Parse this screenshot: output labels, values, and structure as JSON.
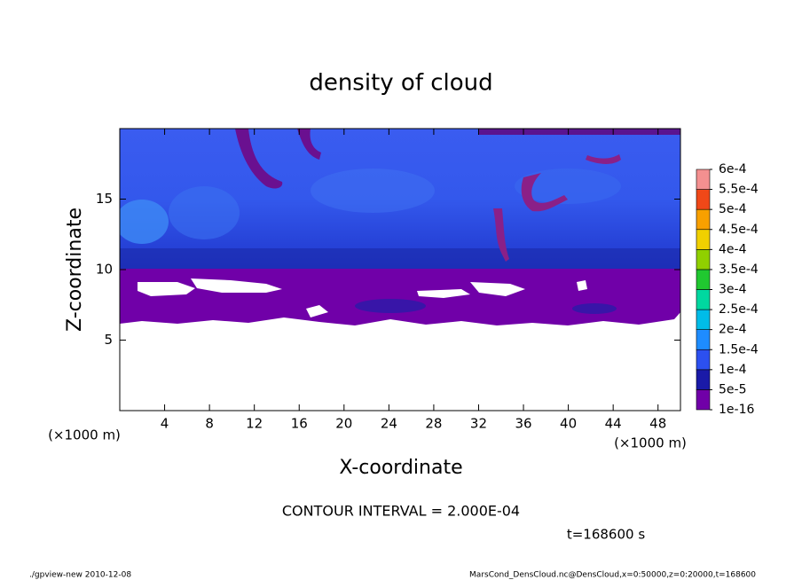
{
  "chart_data": {
    "type": "contour",
    "title": "density of cloud",
    "x_label": "X-coordinate",
    "y_label": "Z-coordinate",
    "x_unit": "(×1000 m)",
    "y_unit": "(×1000 m)",
    "xlim": [
      0,
      50
    ],
    "xticks": [
      4,
      8,
      12,
      16,
      20,
      24,
      28,
      32,
      36,
      40,
      44,
      48
    ],
    "ylim": [
      0,
      20
    ],
    "yticks": [
      5,
      10,
      15
    ],
    "grid": false,
    "colorbar": {
      "levels": [
        {
          "value": 1e-16,
          "label": "1e-16"
        },
        {
          "value": 5e-05,
          "label": "5e-5"
        },
        {
          "value": 0.0001,
          "label": "1e-4"
        },
        {
          "value": 0.00015,
          "label": "1.5e-4"
        },
        {
          "value": 0.0002,
          "label": "2e-4"
        },
        {
          "value": 0.00025,
          "label": "2.5e-4"
        },
        {
          "value": 0.0003,
          "label": "3e-4"
        },
        {
          "value": 0.00035,
          "label": "3.5e-4"
        },
        {
          "value": 0.0004,
          "label": "4e-4"
        },
        {
          "value": 0.00045,
          "label": "4.5e-4"
        },
        {
          "value": 0.0005,
          "label": "5e-4"
        },
        {
          "value": 0.00055,
          "label": "5.5e-4"
        },
        {
          "value": 0.0006,
          "label": "6e-4"
        }
      ],
      "colors": [
        "#7000a8",
        "#1a1aa8",
        "#2c50f0",
        "#1e8cff",
        "#00bce8",
        "#00d8a0",
        "#20c830",
        "#90d000",
        "#f0d000",
        "#f8a000",
        "#f04818",
        "#f49090"
      ]
    },
    "contour_interval": "CONTOUR INTERVAL = 2.000E-04",
    "time_label": "t=168600 s",
    "footer_left": "./gpview-new  2010-12-08",
    "footer_right": "MarsCond_DensCloud.nc@DensCloud,x=0:50000,z=0:20000,t=168600"
  }
}
